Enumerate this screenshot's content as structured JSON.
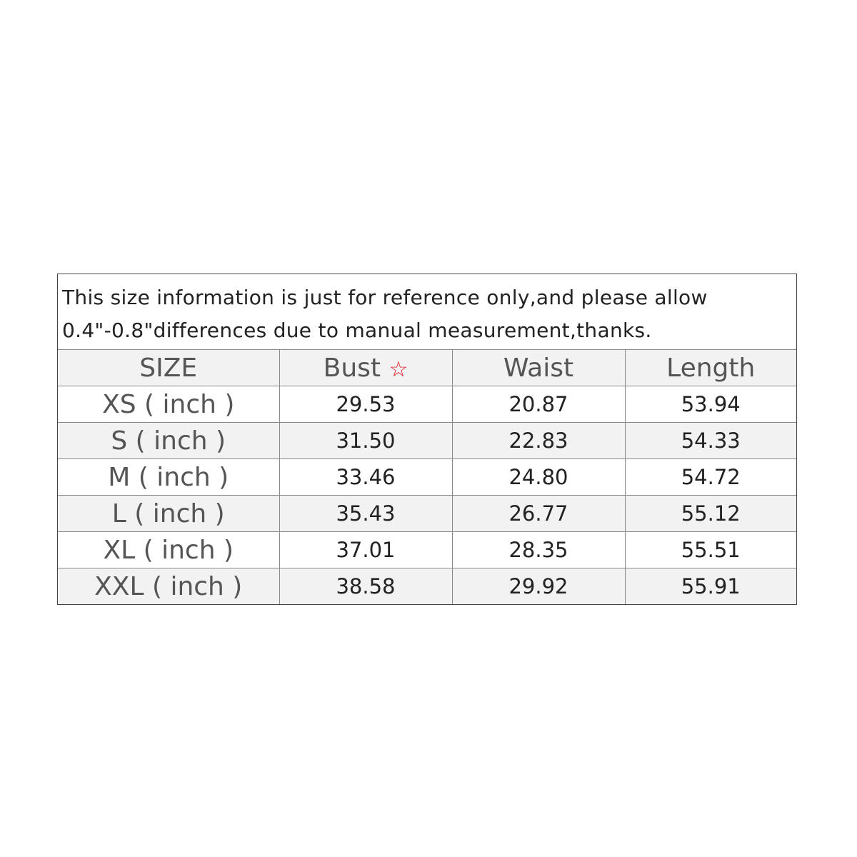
{
  "note": {
    "line1": "This size information is just for reference only,and please allow",
    "line2": "0.4\"-0.8\"differences due to manual measurement,thanks."
  },
  "headers": [
    "SIZE",
    "Bust",
    "Waist",
    "Length"
  ],
  "bust_marker_icon": "star-outline-icon",
  "star_glyph": "☆",
  "accent_color": "#e0202a",
  "rows": [
    {
      "size": "XS ( inch )",
      "bust": "29.53",
      "waist": "20.87",
      "length": "53.94"
    },
    {
      "size": "S ( inch )",
      "bust": "31.50",
      "waist": "22.83",
      "length": "54.33"
    },
    {
      "size": "M ( inch )",
      "bust": "33.46",
      "waist": "24.80",
      "length": "54.72"
    },
    {
      "size": "L ( inch )",
      "bust": "35.43",
      "waist": "26.77",
      "length": "55.12"
    },
    {
      "size": "XL ( inch )",
      "bust": "37.01",
      "waist": "28.35",
      "length": "55.51"
    },
    {
      "size": "XXL ( inch )",
      "bust": "38.58",
      "waist": "29.92",
      "length": "55.91"
    }
  ]
}
